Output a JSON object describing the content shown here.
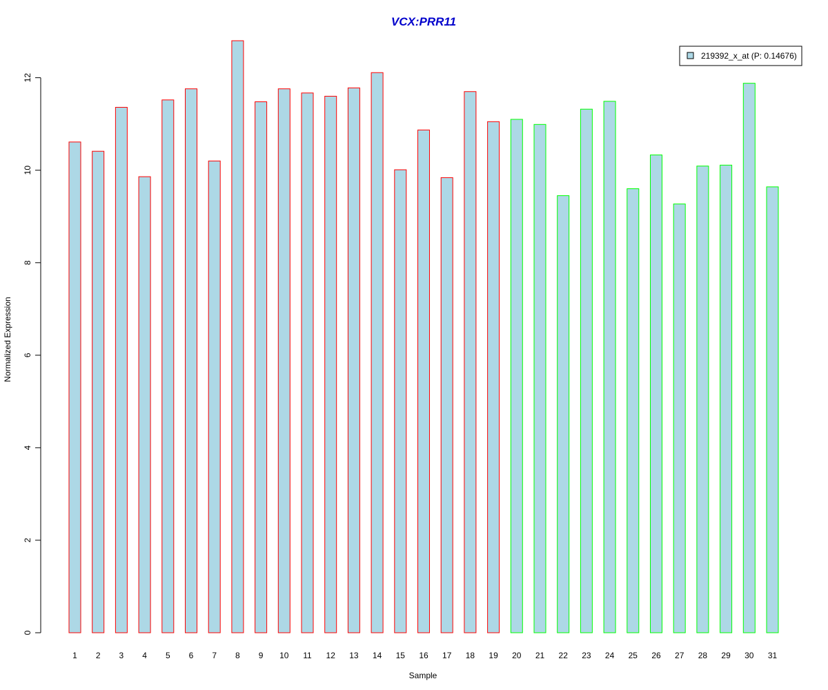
{
  "chart_data": {
    "type": "bar",
    "title": "VCX:PRR11",
    "xlabel": "Sample",
    "ylabel": "Normalized Expression",
    "ylim": [
      0,
      12.8
    ],
    "yticks": [
      0,
      2,
      4,
      6,
      8,
      10,
      12
    ],
    "grid": false,
    "legend_position": "top-right",
    "legend": {
      "label": "219392_x_at (P: 0.14676)"
    },
    "categories": [
      "1",
      "2",
      "3",
      "4",
      "5",
      "6",
      "7",
      "8",
      "9",
      "10",
      "11",
      "12",
      "13",
      "14",
      "15",
      "16",
      "17",
      "18",
      "19",
      "20",
      "21",
      "22",
      "23",
      "24",
      "25",
      "26",
      "27",
      "28",
      "29",
      "30",
      "31"
    ],
    "values": [
      10.61,
      10.41,
      11.36,
      9.86,
      11.52,
      11.76,
      10.2,
      12.8,
      11.48,
      11.76,
      11.67,
      11.6,
      11.78,
      12.11,
      10.01,
      10.87,
      9.84,
      11.7,
      11.05,
      11.1,
      10.99,
      9.45,
      11.32,
      11.49,
      9.6,
      10.33,
      9.27,
      10.09,
      10.11,
      11.88,
      9.64
    ],
    "groups": [
      1,
      1,
      1,
      1,
      1,
      1,
      1,
      1,
      1,
      1,
      1,
      1,
      1,
      1,
      1,
      1,
      1,
      1,
      1,
      2,
      2,
      2,
      2,
      2,
      2,
      2,
      2,
      2,
      2,
      2,
      2
    ],
    "colors": {
      "fill": "#add8e6",
      "group1_border": "#ff0000",
      "group2_border": "#00ff00",
      "title": "#0000cc",
      "axis": "#000000"
    }
  }
}
